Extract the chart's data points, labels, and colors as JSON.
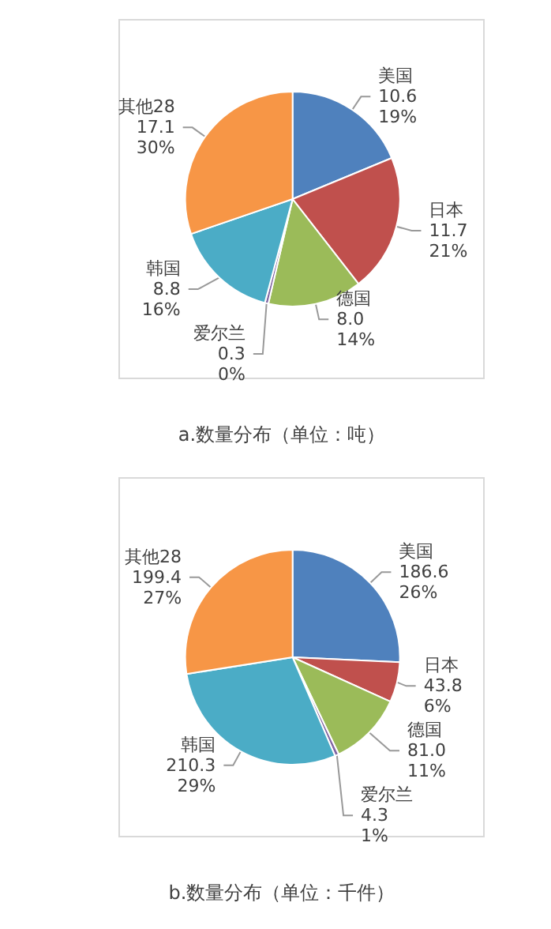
{
  "chart_data": [
    {
      "type": "pie",
      "title": "a.数量分布（单位：吨）",
      "categories": [
        "美国",
        "日本",
        "德国",
        "爱尔兰",
        "韩国",
        "其他28"
      ],
      "values": [
        10.6,
        11.7,
        8.0,
        0.3,
        8.8,
        17.1
      ],
      "colors": [
        "#4f81bd",
        "#c0504d",
        "#9bbb59",
        "#8064a2",
        "#4bacc6",
        "#f79646"
      ],
      "value_labels": [
        "10.6\n19%",
        "11.7\n21%",
        "8.0\n14%",
        "0.3\n0%",
        "8.8\n16%",
        "17.1\n30%"
      ],
      "legend": false
    },
    {
      "type": "pie",
      "title": "b.数量分布（单位：千件）",
      "categories": [
        "美国",
        "日本",
        "德国",
        "爱尔兰",
        "韩国",
        "其他28"
      ],
      "values": [
        186.6,
        43.8,
        81.0,
        4.3,
        210.3,
        199.4
      ],
      "colors": [
        "#4f81bd",
        "#c0504d",
        "#9bbb59",
        "#8064a2",
        "#4bacc6",
        "#f79646"
      ],
      "value_labels": [
        "186.6\n26%",
        "43.8\n6%",
        "81.0\n11%",
        "4.3\n1%",
        "210.3\n29%",
        "199.4\n27%"
      ],
      "legend": false
    }
  ]
}
